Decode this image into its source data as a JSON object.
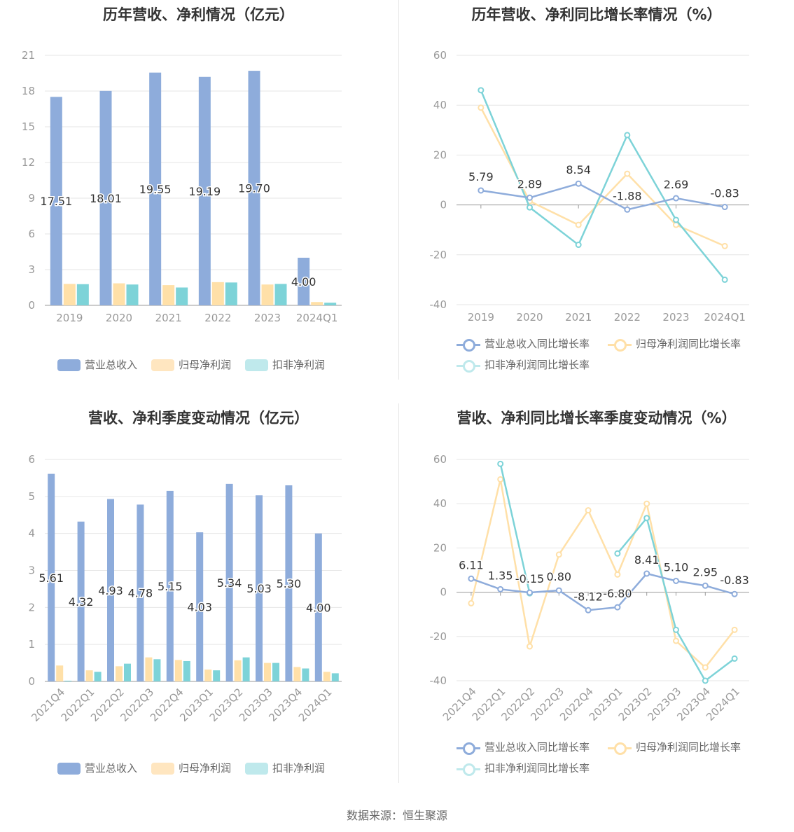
{
  "panels": {
    "p1": {
      "title": "历年营收、净利情况（亿元）"
    },
    "p2": {
      "title": "历年营收、净利同比增长率情况（%）"
    },
    "p3": {
      "title": "营收、净利季度变动情况（亿元）"
    },
    "p4": {
      "title": "营收、净利同比增长率季度变动情况（%）"
    }
  },
  "legends": {
    "bar": [
      "营业总收入",
      "归母净利润",
      "扣非净利润"
    ],
    "line": [
      "营业总收入同比增长率",
      "归母净利润同比增长率",
      "扣非净利润同比增长率"
    ]
  },
  "colors": {
    "revenue": "#8eacdb",
    "netprofit": "#ffe0a8",
    "deducted": "#7dd3d8",
    "deducted_legend": "#bfe9ec",
    "revenue_line": "#8eacdb",
    "netprofit_line": "#ffe0a8",
    "deducted_line": "#7dd3d8"
  },
  "footer": "数据来源：恒生聚源",
  "chart_data": [
    {
      "type": "bar",
      "title": "历年营收、净利情况（亿元）",
      "categories": [
        "2019",
        "2020",
        "2021",
        "2022",
        "2023",
        "2024Q1"
      ],
      "ylim": [
        0,
        21
      ],
      "yticks": [
        0,
        3,
        6,
        9,
        12,
        15,
        18,
        21
      ],
      "series": [
        {
          "name": "营业总收入",
          "values": [
            17.51,
            18.01,
            19.55,
            19.19,
            19.7,
            4.0
          ],
          "labels": [
            "17.51",
            "18.01",
            "19.55",
            "19.19",
            "19.70",
            "4.00"
          ]
        },
        {
          "name": "归母净利润",
          "values": [
            1.8,
            1.85,
            1.7,
            1.95,
            1.75,
            0.28
          ]
        },
        {
          "name": "扣非净利润",
          "values": [
            1.78,
            1.75,
            1.5,
            1.92,
            1.8,
            0.22
          ]
        }
      ],
      "legend": "bottom"
    },
    {
      "type": "line",
      "title": "历年营收、净利同比增长率情况（%）",
      "categories": [
        "2019",
        "2020",
        "2021",
        "2022",
        "2023",
        "2024Q1"
      ],
      "ylim": [
        -40,
        60
      ],
      "yticks": [
        -40,
        -20,
        0,
        20,
        40,
        60
      ],
      "series": [
        {
          "name": "营业总收入同比增长率",
          "values": [
            5.79,
            2.89,
            8.54,
            -1.88,
            2.69,
            -0.83
          ],
          "labels": [
            "5.79",
            "2.89",
            "8.54",
            "-1.88",
            "2.69",
            "-0.83"
          ]
        },
        {
          "name": "归母净利润同比增长率",
          "values": [
            39,
            1.5,
            -8,
            12.5,
            -8,
            -16.5
          ]
        },
        {
          "name": "扣非净利润同比增长率",
          "values": [
            46,
            -1,
            -16,
            28,
            -6,
            -30
          ]
        }
      ],
      "legend": "bottom"
    },
    {
      "type": "bar",
      "title": "营收、净利季度变动情况（亿元）",
      "categories": [
        "2021Q4",
        "2022Q1",
        "2022Q2",
        "2022Q3",
        "2022Q4",
        "2023Q1",
        "2023Q2",
        "2023Q3",
        "2023Q4",
        "2024Q1"
      ],
      "ylim": [
        0,
        6
      ],
      "yticks": [
        0,
        1,
        2,
        3,
        4,
        5,
        6
      ],
      "series": [
        {
          "name": "营业总收入",
          "values": [
            5.61,
            4.32,
            4.93,
            4.78,
            5.15,
            4.03,
            5.34,
            5.03,
            5.3,
            4.0
          ],
          "labels": [
            "5.61",
            "4.32",
            "4.93",
            "4.78",
            "5.15",
            "4.03",
            "5.34",
            "5.03",
            "5.30",
            "4.00"
          ]
        },
        {
          "name": "归母净利润",
          "values": [
            0.43,
            0.3,
            0.41,
            0.65,
            0.58,
            0.32,
            0.57,
            0.5,
            0.39,
            0.26
          ]
        },
        {
          "name": "扣非净利润",
          "values": [
            0.02,
            0.26,
            0.48,
            0.6,
            0.55,
            0.3,
            0.65,
            0.5,
            0.35,
            0.22
          ]
        }
      ],
      "legend": "bottom"
    },
    {
      "type": "line",
      "title": "营收、净利同比增长率季度变动情况（%）",
      "categories": [
        "2021Q4",
        "2022Q1",
        "2022Q2",
        "2022Q3",
        "2022Q4",
        "2023Q1",
        "2023Q2",
        "2023Q3",
        "2023Q4",
        "2024Q1"
      ],
      "ylim": [
        -40,
        60
      ],
      "yticks": [
        -40,
        -20,
        0,
        20,
        40,
        60
      ],
      "series": [
        {
          "name": "营业总收入同比增长率",
          "values": [
            6.11,
            1.35,
            -0.15,
            0.8,
            -8.12,
            -6.8,
            8.41,
            5.1,
            2.95,
            -0.83
          ],
          "labels": [
            "6.11",
            "1.35",
            "-0.15",
            "0.80",
            "-8.12",
            "-6.80",
            "8.41",
            "5.10",
            "2.95",
            "-0.83"
          ]
        },
        {
          "name": "归母净利润同比增长率",
          "values": [
            -5,
            51,
            -24.5,
            17,
            37,
            8,
            40,
            -22,
            -34,
            -17
          ]
        },
        {
          "name": "扣非净利润同比增长率",
          "values": [
            null,
            58,
            -0.5,
            null,
            null,
            17.5,
            33.5,
            -17,
            -40,
            -30
          ]
        }
      ],
      "legend": "bottom"
    }
  ]
}
